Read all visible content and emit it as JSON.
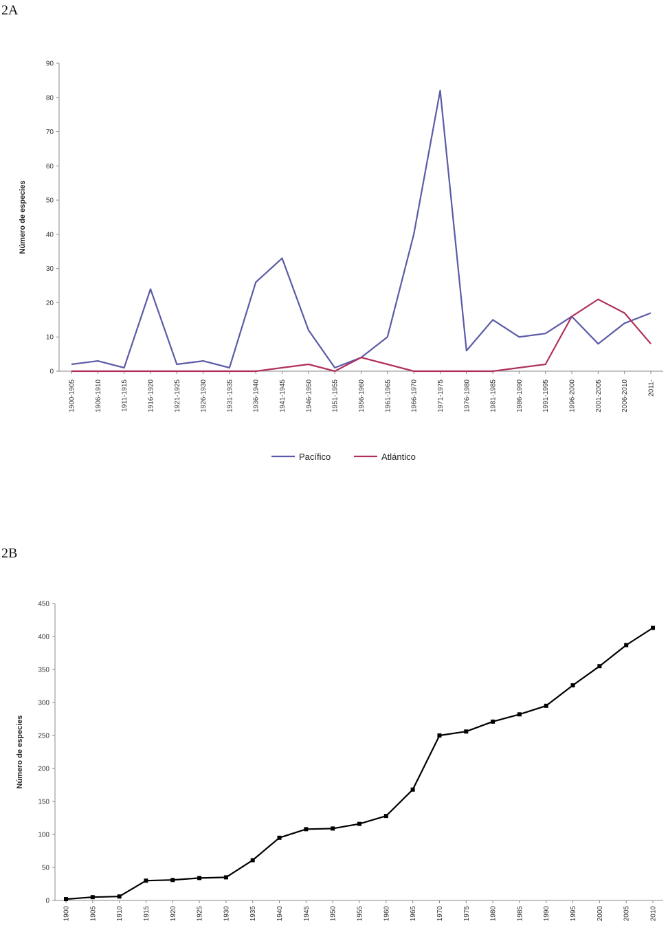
{
  "panels": {
    "a_label": "2A",
    "b_label": "2B"
  },
  "chart_data": [
    {
      "type": "line",
      "panel": "2A",
      "ylabel": "Número de especies",
      "ylim": [
        0,
        90
      ],
      "yticks": [
        0,
        10,
        20,
        30,
        40,
        50,
        60,
        70,
        80,
        90
      ],
      "categories": [
        "1900-1905",
        "1906-1910",
        "1911-1915",
        "1916-1920",
        "1921-1925",
        "1926-1930",
        "1931-1935",
        "1936-1940",
        "1941-1945",
        "1946-1950",
        "1951-1955",
        "1956-1960",
        "1961-1965",
        "1966-1970",
        "1971-1975",
        "1976-1980",
        "1981-1985",
        "1986-1990",
        "1991-1995",
        "1996-2000",
        "2001-2005",
        "2006-2010",
        "2011-"
      ],
      "series": [
        {
          "name": "Pacífico",
          "color": "#5a5aa8",
          "values": [
            2,
            3,
            1,
            24,
            2,
            3,
            1,
            26,
            33,
            12,
            1,
            4,
            10,
            40,
            82,
            6,
            15,
            10,
            11,
            16,
            8,
            14,
            17
          ]
        },
        {
          "name": "Atlántico",
          "color": "#b0305a",
          "values": [
            0,
            0,
            0,
            0,
            0,
            0,
            0,
            0,
            1,
            2,
            0,
            4,
            2,
            0,
            0,
            0,
            0,
            1,
            2,
            16,
            21,
            17,
            8
          ]
        }
      ],
      "legend": "bottom"
    },
    {
      "type": "line",
      "panel": "2B",
      "ylabel": "Número de especies",
      "ylim": [
        0,
        450
      ],
      "yticks": [
        0,
        50,
        100,
        150,
        200,
        250,
        300,
        350,
        400,
        450
      ],
      "categories": [
        "1900",
        "1905",
        "1910",
        "1915",
        "1920",
        "1925",
        "1930",
        "1935",
        "1940",
        "1945",
        "1950",
        "1955",
        "1960",
        "1965",
        "1970",
        "1975",
        "1980",
        "1985",
        "1990",
        "1995",
        "2000",
        "2005",
        "2010"
      ],
      "series": [
        {
          "name": "",
          "color": "#000000",
          "values": [
            2,
            5,
            6,
            30,
            31,
            34,
            35,
            61,
            95,
            108,
            109,
            116,
            128,
            168,
            250,
            256,
            271,
            282,
            295,
            326,
            355,
            387,
            413
          ]
        }
      ],
      "markers": true
    }
  ]
}
